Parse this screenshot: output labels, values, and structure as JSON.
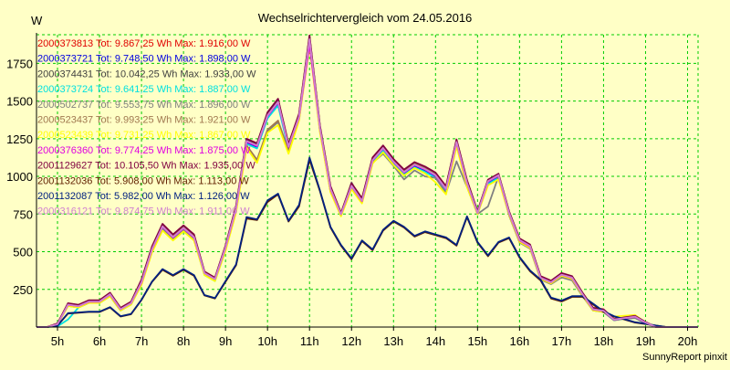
{
  "chart_data": {
    "type": "line",
    "title": "Wechselrichtervergleich vom 24.05.2016",
    "ylabel": "W",
    "footer": "SunnyReport pinxit",
    "x_ticks": [
      "5h",
      "6h",
      "7h",
      "8h",
      "9h",
      "10h",
      "11h",
      "12h",
      "13h",
      "14h",
      "15h",
      "16h",
      "17h",
      "18h",
      "19h",
      "20h"
    ],
    "x_range": [
      4.5,
      20.25
    ],
    "y_ticks": [
      250,
      500,
      750,
      1000,
      1250,
      1500,
      1750
    ],
    "ylim": [
      0,
      1940
    ],
    "grid": true,
    "legend_position": "top-left inside",
    "colors": {
      "background": "#ffffc6",
      "grid": "#00cc00",
      "axis": "#000000"
    },
    "x_hours": [
      4.5,
      4.75,
      5.0,
      5.25,
      5.5,
      5.75,
      6.0,
      6.25,
      6.5,
      6.75,
      7.0,
      7.25,
      7.5,
      7.75,
      8.0,
      8.25,
      8.5,
      8.75,
      9.0,
      9.25,
      9.5,
      9.75,
      10.0,
      10.25,
      10.5,
      10.75,
      11.0,
      11.25,
      11.5,
      11.75,
      12.0,
      12.25,
      12.5,
      12.75,
      13.0,
      13.25,
      13.5,
      13.75,
      14.0,
      14.25,
      14.5,
      14.75,
      15.0,
      15.25,
      15.5,
      15.75,
      16.0,
      16.25,
      16.5,
      16.75,
      17.0,
      17.25,
      17.5,
      17.75,
      18.0,
      18.25,
      18.5,
      18.75,
      19.0,
      19.25,
      19.5,
      19.75,
      20.0,
      20.25
    ],
    "series": [
      {
        "name": "2000373813",
        "legend": "2000373813 Tot: 9.867,25 Wh Max: 1.916,00 W",
        "color": "#e00000",
        "values": [
          0,
          0,
          20,
          150,
          140,
          170,
          170,
          220,
          120,
          160,
          300,
          520,
          670,
          600,
          660,
          600,
          360,
          320,
          530,
          790,
          1240,
          1210,
          1410,
          1500,
          1200,
          1400,
          1910,
          1320,
          920,
          750,
          940,
          840,
          1110,
          1190,
          1100,
          1030,
          1080,
          1050,
          1010,
          920,
          1230,
          960,
          760,
          970,
          1010,
          760,
          580,
          540,
          330,
          300,
          350,
          330,
          220,
          120,
          110,
          50,
          60,
          70,
          30,
          0,
          0,
          0,
          0,
          0
        ]
      },
      {
        "name": "2000373721",
        "legend": "2000373721 Tot: 9.748,50 Wh Max: 1.898,00 W",
        "color": "#0000e0",
        "values": [
          0,
          0,
          15,
          145,
          135,
          165,
          165,
          210,
          115,
          155,
          290,
          510,
          660,
          590,
          650,
          590,
          355,
          315,
          520,
          780,
          1225,
          1195,
          1395,
          1485,
          1190,
          1385,
          1895,
          1310,
          910,
          745,
          930,
          830,
          1100,
          1180,
          1090,
          1020,
          1070,
          1040,
          1000,
          910,
          1220,
          950,
          755,
          960,
          1000,
          750,
          570,
          530,
          325,
          295,
          345,
          325,
          215,
          115,
          105,
          48,
          58,
          65,
          28,
          0,
          0,
          0,
          0,
          0
        ]
      },
      {
        "name": "2000374431",
        "legend": "2000374431 Tot: 10.042,25 Wh Max: 1.933,00 W",
        "color": "#404040",
        "values": [
          0,
          0,
          22,
          155,
          145,
          175,
          175,
          225,
          125,
          165,
          310,
          530,
          680,
          610,
          670,
          610,
          365,
          325,
          535,
          800,
          1245,
          1215,
          1420,
          1510,
          1210,
          1410,
          1930,
          1330,
          930,
          755,
          950,
          850,
          1120,
          1200,
          1110,
          1040,
          1090,
          1060,
          1020,
          930,
          1240,
          970,
          765,
          975,
          1015,
          765,
          585,
          545,
          335,
          305,
          355,
          335,
          225,
          125,
          115,
          52,
          62,
          72,
          32,
          0,
          0,
          0,
          0,
          0
        ]
      },
      {
        "name": "2000373724",
        "legend": "2000373724 Tot: 9.641,25 Wh Max: 1.887,00 W",
        "color": "#00e0e0",
        "values": [
          0,
          0,
          5,
          50,
          130,
          160,
          160,
          205,
          110,
          150,
          285,
          500,
          650,
          580,
          640,
          580,
          345,
          305,
          510,
          770,
          1215,
          1185,
          1385,
          1470,
          1180,
          1375,
          1885,
          1300,
          900,
          740,
          920,
          825,
          1090,
          1170,
          1080,
          1010,
          1060,
          1030,
          990,
          900,
          1210,
          940,
          750,
          950,
          990,
          745,
          565,
          525,
          320,
          290,
          340,
          320,
          210,
          110,
          100,
          45,
          55,
          60,
          25,
          0,
          0,
          0,
          0,
          0
        ]
      },
      {
        "name": "2000502737",
        "legend": "2000502737 Tot: 9.553,75 Wh Max: 1.896,00 W",
        "color": "#808080",
        "values": [
          0,
          0,
          18,
          140,
          130,
          160,
          160,
          205,
          110,
          150,
          285,
          500,
          650,
          585,
          645,
          585,
          350,
          310,
          515,
          775,
          1200,
          1100,
          1300,
          1360,
          1160,
          1380,
          1895,
          1300,
          900,
          740,
          960,
          830,
          1090,
          1150,
          1070,
          980,
          1040,
          1000,
          990,
          890,
          1100,
          930,
          750,
          800,
          1000,
          740,
          560,
          520,
          315,
          285,
          330,
          310,
          205,
          110,
          100,
          45,
          55,
          60,
          25,
          0,
          0,
          0,
          0,
          0
        ]
      },
      {
        "name": "2000523437",
        "legend": "2000523437 Tot: 9.993,25 Wh Max: 1.921,00 W",
        "color": "#a07850",
        "values": [
          0,
          0,
          20,
          152,
          142,
          172,
          172,
          222,
          122,
          162,
          305,
          525,
          675,
          605,
          665,
          605,
          362,
          322,
          532,
          795,
          1205,
          1110,
          1310,
          1370,
          1170,
          1390,
          1920,
          1320,
          925,
          750,
          945,
          845,
          1115,
          1195,
          1105,
          1035,
          1085,
          1055,
          1015,
          925,
          1235,
          965,
          762,
          972,
          1012,
          762,
          582,
          542,
          332,
          302,
          352,
          332,
          222,
          122,
          112,
          51,
          61,
          71,
          31,
          0,
          0,
          0,
          0,
          0
        ]
      },
      {
        "name": "2000523439",
        "legend": "2000523439 Tot: 9.731,25 Wh Max: 1.867,00 W",
        "color": "#ffff00",
        "values": [
          0,
          0,
          15,
          140,
          130,
          160,
          160,
          205,
          110,
          150,
          280,
          495,
          640,
          575,
          635,
          575,
          345,
          305,
          505,
          760,
          1190,
          1090,
          1290,
          1340,
          1150,
          1370,
          1865,
          1290,
          895,
          735,
          915,
          820,
          1085,
          1160,
          1075,
          1005,
          1055,
          1020,
          960,
          880,
          1200,
          930,
          750,
          940,
          980,
          745,
          565,
          525,
          320,
          290,
          340,
          320,
          210,
          110,
          100,
          70,
          75,
          80,
          30,
          0,
          0,
          0,
          0,
          0
        ]
      },
      {
        "name": "2000376360",
        "legend": "2000376360 Tot: 9.774,25 Wh Max: 1.875,00 W",
        "color": "#e000e0",
        "values": [
          0,
          0,
          18,
          148,
          138,
          168,
          168,
          215,
          118,
          158,
          295,
          515,
          665,
          595,
          655,
          595,
          358,
          318,
          525,
          785,
          1230,
          1200,
          1400,
          1490,
          1195,
          1390,
          1875,
          1315,
          915,
          748,
          935,
          835,
          1105,
          1185,
          1095,
          1025,
          1075,
          1045,
          1005,
          915,
          1225,
          955,
          757,
          965,
          1005,
          755,
          575,
          535,
          327,
          297,
          347,
          327,
          217,
          117,
          107,
          49,
          59,
          68,
          29,
          0,
          0,
          0,
          0,
          0
        ]
      },
      {
        "name": "2001129627",
        "legend": "2001129627 Tot: 10.105,50 Wh Max: 1.935,00 W",
        "color": "#800040",
        "values": [
          0,
          0,
          24,
          158,
          148,
          178,
          178,
          228,
          128,
          168,
          315,
          535,
          685,
          615,
          675,
          615,
          368,
          328,
          540,
          805,
          1250,
          1220,
          1425,
          1515,
          1215,
          1415,
          1935,
          1335,
          935,
          758,
          955,
          855,
          1125,
          1205,
          1115,
          1045,
          1095,
          1065,
          1025,
          935,
          1245,
          975,
          768,
          978,
          1018,
          768,
          588,
          548,
          338,
          308,
          358,
          338,
          228,
          128,
          118,
          54,
          64,
          74,
          34,
          0,
          0,
          0,
          0,
          0
        ]
      },
      {
        "name": "2001132036",
        "legend": "2001132036 Tot: 5.908,00 Wh Max: 1.113,00 W",
        "color": "#602000",
        "values": [
          0,
          0,
          10,
          90,
          95,
          100,
          100,
          130,
          70,
          85,
          180,
          300,
          380,
          340,
          380,
          340,
          210,
          190,
          300,
          410,
          720,
          710,
          830,
          880,
          700,
          800,
          1110,
          900,
          660,
          540,
          450,
          570,
          510,
          640,
          700,
          660,
          600,
          630,
          610,
          590,
          540,
          730,
          560,
          470,
          560,
          590,
          460,
          370,
          310,
          190,
          170,
          200,
          200,
          150,
          100,
          70,
          50,
          30,
          20,
          10,
          0,
          0,
          0,
          0
        ]
      },
      {
        "name": "2001132087",
        "legend": "2001132087 Tot: 5.982,00 Wh Max: 1.126,00 W",
        "color": "#002080",
        "values": [
          0,
          0,
          10,
          92,
          97,
          102,
          102,
          132,
          72,
          87,
          182,
          302,
          385,
          345,
          385,
          345,
          212,
          192,
          305,
          415,
          730,
          715,
          840,
          885,
          705,
          810,
          1125,
          905,
          665,
          545,
          455,
          575,
          515,
          645,
          705,
          665,
          605,
          635,
          615,
          595,
          545,
          735,
          565,
          475,
          565,
          595,
          465,
          375,
          315,
          195,
          175,
          205,
          205,
          155,
          105,
          72,
          52,
          32,
          22,
          10,
          0,
          0,
          0,
          0
        ]
      },
      {
        "name": "2000316121",
        "legend": "2000316121 Tot: 9.874,75 Wh Max: 1.911,00 W",
        "color": "#d080d0",
        "values": [
          0,
          0,
          19,
          149,
          139,
          169,
          169,
          218,
          119,
          159,
          298,
          518,
          668,
          598,
          658,
          598,
          359,
          319,
          528,
          788,
          1235,
          1205,
          1405,
          1495,
          1198,
          1395,
          1910,
          1318,
          918,
          749,
          938,
          838,
          1108,
          1188,
          1098,
          1028,
          1078,
          1048,
          1008,
          918,
          1228,
          958,
          758,
          968,
          1008,
          758,
          578,
          538,
          328,
          298,
          348,
          328,
          218,
          118,
          108,
          50,
          60,
          69,
          30,
          0,
          0,
          0,
          0,
          0
        ]
      }
    ]
  }
}
